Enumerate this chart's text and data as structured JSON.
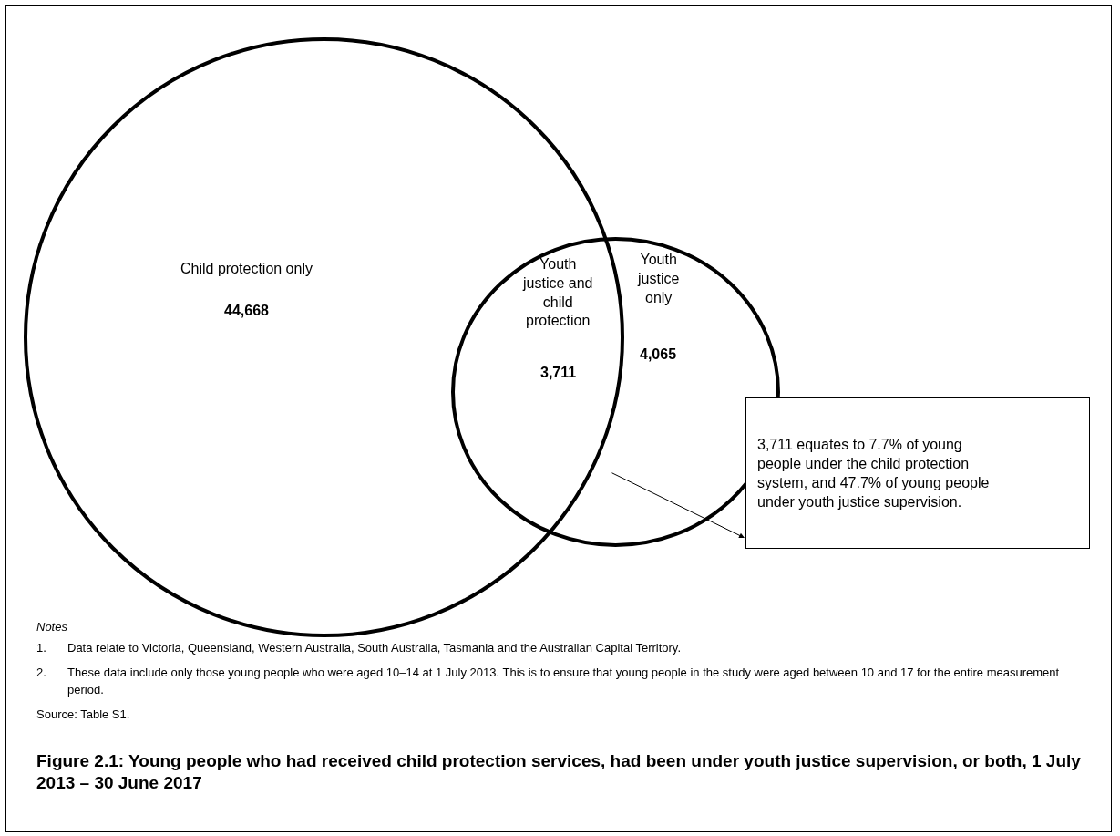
{
  "chart_data": {
    "type": "other",
    "title": "Figure 2.1: Young people who had received child protection services, had been under youth justice supervision, or both, 1 July 2013 – 30 June 2017",
    "categories": [
      "Child protection only",
      "Youth justice and child protection",
      "Youth justice only"
    ],
    "values": [
      44668,
      3711,
      4065
    ],
    "value_labels": [
      "44,668",
      "3,711",
      "4,065"
    ],
    "annotations": [
      "3,711 equates to 7.7% of young people under the child protection system, and 47.7% of young people under youth justice supervision.",
      "Notes",
      "1. Data relate to Victoria, Queensland, Western Australia, South Australia, Tasmania and the Australian Capital Territory.",
      "2. These data include only those young people who were aged 10–14 at 1 July 2013. This is to ensure that young people in the study were aged between 10 and 17 for the entire measurement period.",
      "Source: Table S1."
    ]
  }
}
